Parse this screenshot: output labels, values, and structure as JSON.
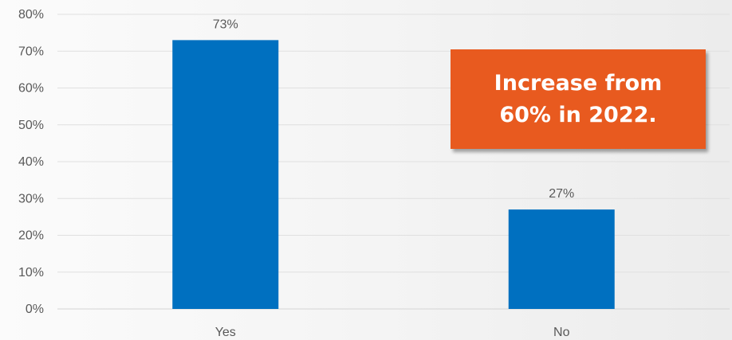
{
  "chart_data": {
    "type": "bar",
    "categories": [
      "Yes",
      "No"
    ],
    "values": [
      73,
      27
    ],
    "data_labels": [
      "73%",
      "27%"
    ],
    "ylim": [
      0,
      80
    ],
    "y_ticks": [
      0,
      10,
      20,
      30,
      40,
      50,
      60,
      70,
      80
    ],
    "y_tick_labels": [
      "0%",
      "10%",
      "20%",
      "30%",
      "40%",
      "50%",
      "60%",
      "70%",
      "80%"
    ],
    "grid": true,
    "bar_color": "#0070c0",
    "title": "",
    "xlabel": "",
    "ylabel": ""
  },
  "callout": {
    "line1": "Increase from",
    "line2": "60% in 2022.",
    "color": "#e85a1f"
  }
}
